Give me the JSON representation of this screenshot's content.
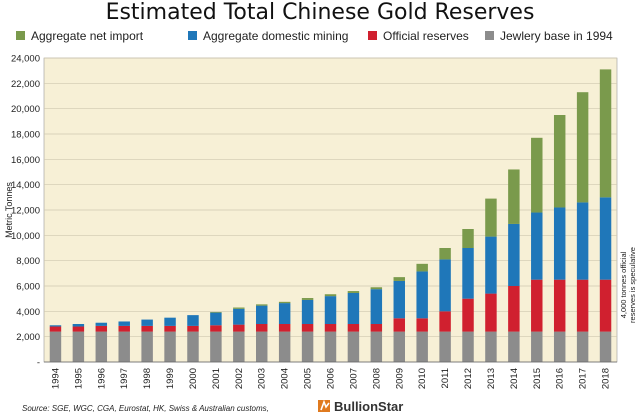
{
  "colors": {
    "jewelry": "#8c8c8c",
    "official": "#d0202f",
    "mining": "#1f77b9",
    "imports": "#7a9a4c",
    "plot_bg": "#f7f0d6"
  },
  "footer": {
    "source": "Source: SGE, WGC, CGA, Eurostat, HK, Swiss & Australian customs,",
    "brand": "BullionStar",
    "brand_icon": "bullionstar-logo-icon"
  },
  "annotation": "4,000 tonnes official reserves is speculative",
  "chart_data": {
    "type": "bar",
    "stacked": true,
    "title": "Estimated Total Chinese Gold Reserves",
    "ylabel": "Metric Tonnes",
    "xlabel": "",
    "ylim": [
      0,
      24000
    ],
    "yticks": [
      "-",
      "2,000",
      "4,000",
      "6,000",
      "8,000",
      "10,000",
      "12,000",
      "14,000",
      "16,000",
      "18,000",
      "20,000",
      "22,000",
      "24,000"
    ],
    "grid": true,
    "legend_position": "top",
    "categories": [
      "1994",
      "1995",
      "1996",
      "1997",
      "1998",
      "1999",
      "2000",
      "2001",
      "2002",
      "2003",
      "2004",
      "2005",
      "2006",
      "2007",
      "2008",
      "2009",
      "2010",
      "2011",
      "2012",
      "2013",
      "2014",
      "2015",
      "2016",
      "2017",
      "2018"
    ],
    "series": [
      {
        "name": "Jewlery base in 1994",
        "color_key": "jewelry",
        "values": [
          2400,
          2400,
          2400,
          2400,
          2400,
          2400,
          2400,
          2400,
          2400,
          2400,
          2400,
          2400,
          2400,
          2400,
          2400,
          2400,
          2400,
          2400,
          2400,
          2400,
          2400,
          2400,
          2400,
          2400,
          2400
        ]
      },
      {
        "name": "Official reserves",
        "color_key": "official",
        "values": [
          400,
          400,
          450,
          450,
          450,
          450,
          450,
          500,
          550,
          600,
          600,
          600,
          600,
          600,
          600,
          1050,
          1050,
          1600,
          2600,
          3000,
          3600,
          4100,
          4100,
          4100,
          4100
        ]
      },
      {
        "name": "Aggregate domestic mining",
        "color_key": "mining",
        "values": [
          100,
          200,
          250,
          350,
          500,
          650,
          850,
          1000,
          1250,
          1450,
          1650,
          1900,
          2200,
          2450,
          2750,
          2950,
          3700,
          4100,
          4000,
          4500,
          4900,
          5300,
          5700,
          6100,
          6500
        ]
      },
      {
        "name": "Aggregate net import",
        "color_key": "imports",
        "values": [
          0,
          0,
          0,
          0,
          0,
          0,
          0,
          50,
          100,
          100,
          100,
          150,
          150,
          150,
          150,
          300,
          600,
          900,
          1500,
          3000,
          4300,
          5900,
          7300,
          8700,
          10100
        ]
      }
    ],
    "legend_order": [
      "Aggregate net import",
      "Aggregate domestic mining",
      "Official reserves",
      "Jewlery base in 1994"
    ]
  }
}
